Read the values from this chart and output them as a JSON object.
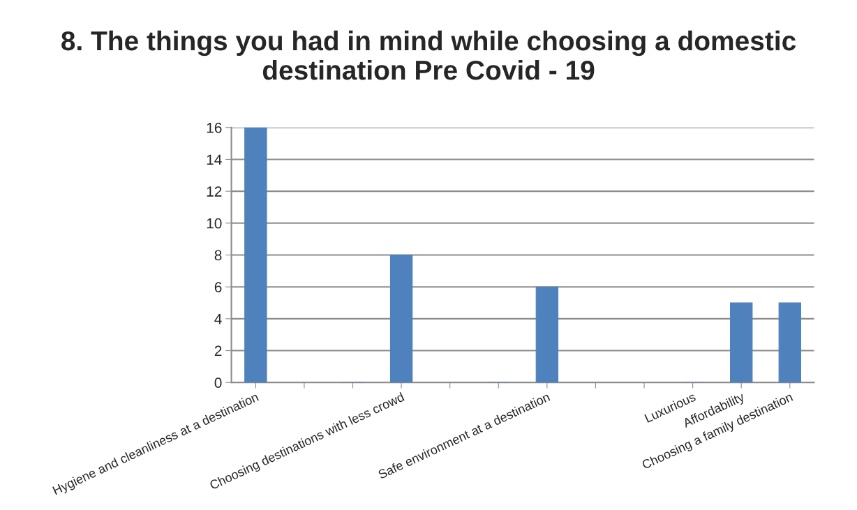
{
  "chart_data": {
    "type": "bar",
    "title": "8. The things you had in mind while choosing a domestic destination Pre Covid - 19",
    "categories": [
      "Hygiene and cleanliness at a destination",
      null,
      null,
      "Choosing destinations with less crowd",
      null,
      null,
      "Safe environment at a destination",
      null,
      null,
      "Luxurious",
      "Affordability",
      "Choosing a family destination"
    ],
    "values": [
      16,
      null,
      0,
      8,
      null,
      0,
      6,
      null,
      null,
      0,
      5,
      5
    ],
    "color": "#4f81bd",
    "ylim": [
      0,
      16
    ],
    "yticks": [
      0,
      2,
      4,
      6,
      8,
      10,
      12,
      14,
      16
    ],
    "grid": "y"
  }
}
